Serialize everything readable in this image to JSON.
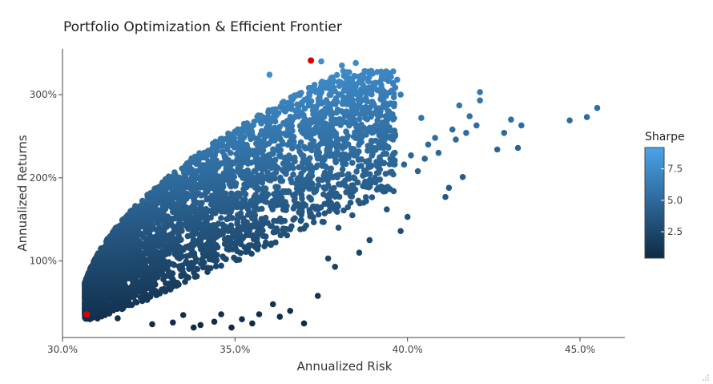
{
  "chart_data": {
    "type": "scatter",
    "title": "Portfolio Optimization & Efficient Frontier",
    "xlabel": "Annualized Risk",
    "ylabel": "Annualized Returns",
    "xlim": [
      0.3,
      0.463
    ],
    "ylim": [
      0.08,
      3.55
    ],
    "x_ticks": [
      {
        "value": 0.3,
        "label": "30.0%"
      },
      {
        "value": 0.35,
        "label": "35.0%"
      },
      {
        "value": 0.4,
        "label": "40.0%"
      },
      {
        "value": 0.45,
        "label": "45.0%"
      }
    ],
    "y_ticks": [
      {
        "value": 1.0,
        "label": "100%"
      },
      {
        "value": 2.0,
        "label": "200%"
      },
      {
        "value": 3.0,
        "label": "300%"
      }
    ],
    "grid": false,
    "colorbar": {
      "title": "Sharpe",
      "range": [
        0.4,
        9.2
      ],
      "ticks": [
        {
          "value": 2.5,
          "label": "2.5"
        },
        {
          "value": 5.0,
          "label": "5.0"
        },
        {
          "value": 7.5,
          "label": "7.5"
        }
      ],
      "low_color": "#0f2a44",
      "high_color": "#4aa3ea"
    },
    "highlight_color": "#dd0000",
    "highlighted_points": [
      {
        "x": 0.307,
        "y": 0.36,
        "sharpe": 1.2
      },
      {
        "x": 0.372,
        "y": 3.41,
        "sharpe": 9.2
      }
    ],
    "outliers": [
      {
        "x": 0.455,
        "y": 2.84
      },
      {
        "x": 0.452,
        "y": 2.73
      },
      {
        "x": 0.447,
        "y": 2.69
      },
      {
        "x": 0.433,
        "y": 2.63
      },
      {
        "x": 0.432,
        "y": 2.36
      },
      {
        "x": 0.43,
        "y": 2.7
      },
      {
        "x": 0.428,
        "y": 2.54
      },
      {
        "x": 0.426,
        "y": 2.34
      },
      {
        "x": 0.421,
        "y": 3.03
      },
      {
        "x": 0.421,
        "y": 2.93
      },
      {
        "x": 0.42,
        "y": 2.63
      },
      {
        "x": 0.418,
        "y": 2.74
      },
      {
        "x": 0.417,
        "y": 2.54
      },
      {
        "x": 0.416,
        "y": 2.01
      },
      {
        "x": 0.415,
        "y": 2.87
      },
      {
        "x": 0.414,
        "y": 2.46
      },
      {
        "x": 0.413,
        "y": 2.58
      },
      {
        "x": 0.412,
        "y": 1.88
      },
      {
        "x": 0.411,
        "y": 1.77
      },
      {
        "x": 0.409,
        "y": 2.3
      },
      {
        "x": 0.408,
        "y": 2.48
      },
      {
        "x": 0.406,
        "y": 2.4
      },
      {
        "x": 0.405,
        "y": 2.23
      },
      {
        "x": 0.404,
        "y": 2.72
      },
      {
        "x": 0.403,
        "y": 2.08
      },
      {
        "x": 0.401,
        "y": 2.27
      },
      {
        "x": 0.4,
        "y": 1.53
      },
      {
        "x": 0.399,
        "y": 2.16
      },
      {
        "x": 0.398,
        "y": 3.0
      },
      {
        "x": 0.397,
        "y": 3.18
      },
      {
        "x": 0.396,
        "y": 1.84
      },
      {
        "x": 0.395,
        "y": 2.57
      },
      {
        "x": 0.394,
        "y": 1.62
      },
      {
        "x": 0.393,
        "y": 3.2
      },
      {
        "x": 0.392,
        "y": 2.1
      },
      {
        "x": 0.39,
        "y": 2.9
      },
      {
        "x": 0.389,
        "y": 1.25
      },
      {
        "x": 0.388,
        "y": 1.72
      },
      {
        "x": 0.386,
        "y": 1.1
      },
      {
        "x": 0.385,
        "y": 3.38
      },
      {
        "x": 0.384,
        "y": 1.55
      },
      {
        "x": 0.381,
        "y": 3.35
      },
      {
        "x": 0.38,
        "y": 1.4
      },
      {
        "x": 0.379,
        "y": 0.93
      },
      {
        "x": 0.377,
        "y": 1.03
      },
      {
        "x": 0.375,
        "y": 3.4
      },
      {
        "x": 0.374,
        "y": 0.58
      },
      {
        "x": 0.37,
        "y": 0.25
      },
      {
        "x": 0.366,
        "y": 0.4
      },
      {
        "x": 0.363,
        "y": 0.33
      },
      {
        "x": 0.361,
        "y": 0.48
      },
      {
        "x": 0.357,
        "y": 0.36
      },
      {
        "x": 0.355,
        "y": 0.25
      },
      {
        "x": 0.352,
        "y": 0.3
      },
      {
        "x": 0.349,
        "y": 0.2
      },
      {
        "x": 0.346,
        "y": 0.36
      },
      {
        "x": 0.344,
        "y": 0.27
      },
      {
        "x": 0.34,
        "y": 0.23
      },
      {
        "x": 0.338,
        "y": 0.2
      },
      {
        "x": 0.335,
        "y": 0.35
      },
      {
        "x": 0.332,
        "y": 0.26
      },
      {
        "x": 0.326,
        "y": 0.24
      },
      {
        "x": 0.316,
        "y": 0.31
      },
      {
        "x": 0.36,
        "y": 3.24
      },
      {
        "x": 0.388,
        "y": 2.52
      },
      {
        "x": 0.384,
        "y": 2.18
      },
      {
        "x": 0.392,
        "y": 1.98
      },
      {
        "x": 0.398,
        "y": 1.36
      }
    ]
  }
}
